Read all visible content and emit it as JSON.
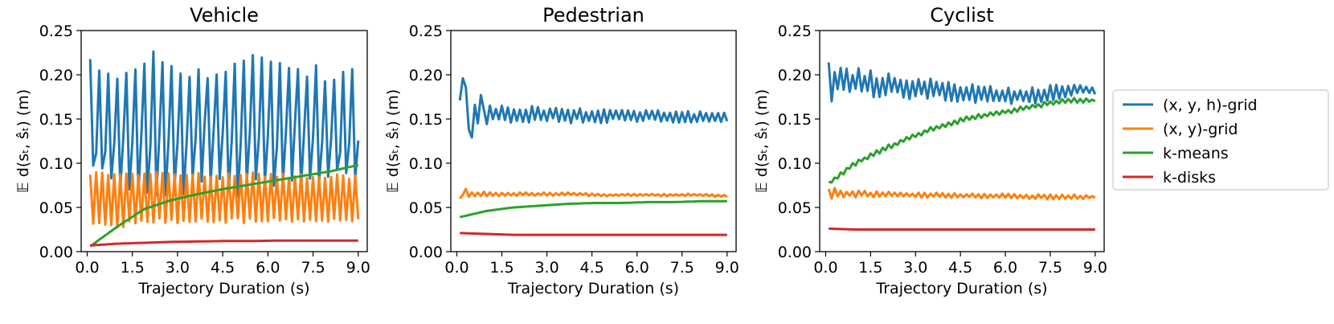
{
  "figure": {
    "legend": {
      "placement": "right",
      "entries": [
        {
          "key": "xyh",
          "label": "(x, y, h)-grid",
          "color": "#1f77b4"
        },
        {
          "key": "xy",
          "label": "(x, y)-grid",
          "color": "#ff7f0e"
        },
        {
          "key": "kmeans",
          "label": "k-means",
          "color": "#2ca02c"
        },
        {
          "key": "kdisks",
          "label": "k-disks",
          "color": "#d62728"
        }
      ]
    }
  },
  "chart_data": [
    {
      "type": "line",
      "title": "Vehicle",
      "xlabel": "Trajectory Duration (s)",
      "ylabel": "𝔼 d(sₜ, ŝₜ) (m)",
      "xlim": [
        -0.2,
        9.3
      ],
      "ylim": [
        0,
        0.25
      ],
      "xticks": [
        "0.0",
        "1.5",
        "3.0",
        "4.5",
        "6.0",
        "7.5",
        "9.0"
      ],
      "yticks": [
        "0.00",
        "0.05",
        "0.10",
        "0.15",
        "0.20",
        "0.25"
      ],
      "x": {
        "start": 0.1,
        "step": 0.1,
        "count": 90
      },
      "series": [
        {
          "name": "(x, y, h)-grid",
          "color": "#1f77b4",
          "pattern": "zigzag",
          "period": 3,
          "lo": [
            0.12,
            0.12,
            0.13,
            0.12,
            0.14,
            0.13,
            0.12,
            0.14,
            0.12,
            0.12
          ],
          "hi": [
            0.21,
            0.2,
            0.22,
            0.21,
            0.2,
            0.21,
            0.22,
            0.21,
            0.2,
            0.2
          ],
          "mid": [
            0.09,
            0.08,
            0.07,
            0.07,
            0.08,
            0.07,
            0.08,
            0.07,
            0.08,
            0.09
          ]
        },
        {
          "name": "(x, y)-grid",
          "color": "#ff7f0e",
          "pattern": "alternating",
          "lo": [
            0.03,
            0.03,
            0.035,
            0.035,
            0.035,
            0.035,
            0.035,
            0.035,
            0.035,
            0.035
          ],
          "hi": [
            0.089,
            0.089,
            0.088,
            0.087,
            0.087,
            0.087,
            0.086,
            0.086,
            0.085,
            0.084
          ]
        },
        {
          "name": "k-means",
          "color": "#2ca02c",
          "curve": [
            0.006,
            0.028,
            0.048,
            0.058,
            0.065,
            0.071,
            0.076,
            0.081,
            0.086,
            0.091,
            0.098
          ]
        },
        {
          "name": "k-disks",
          "color": "#d62728",
          "curve": [
            0.007,
            0.009,
            0.01,
            0.011,
            0.0115,
            0.012,
            0.012,
            0.0125,
            0.0125,
            0.0125,
            0.0125
          ]
        }
      ]
    },
    {
      "type": "line",
      "title": "Pedestrian",
      "xlabel": "Trajectory Duration (s)",
      "ylabel": "𝔼 d(sₜ, ŝₜ) (m)",
      "xlim": [
        -0.2,
        9.3
      ],
      "ylim": [
        0,
        0.25
      ],
      "xticks": [
        "0.0",
        "1.5",
        "3.0",
        "4.5",
        "6.0",
        "7.5",
        "9.0"
      ],
      "yticks": [
        "0.00",
        "0.05",
        "0.10",
        "0.15",
        "0.20",
        "0.25"
      ],
      "x": {
        "start": 0.1,
        "step": 0.1,
        "count": 90
      },
      "series": [
        {
          "name": "(x, y, h)-grid",
          "color": "#1f77b4",
          "pattern": "noisy",
          "start": [
            0.171,
            0.196,
            0.186,
            0.138,
            0.129,
            0.166,
            0.145,
            0.177
          ],
          "curve": [
            0.155,
            0.155,
            0.155,
            0.155,
            0.154,
            0.154,
            0.154,
            0.153,
            0.152,
            0.151
          ],
          "amp": [
            0.012,
            0.012,
            0.011,
            0.01,
            0.009,
            0.009,
            0.008,
            0.008,
            0.007,
            0.006
          ]
        },
        {
          "name": "(x, y)-grid",
          "color": "#ff7f0e",
          "pattern": "noisy",
          "start": [
            0.06,
            0.064,
            0.071,
            0.062
          ],
          "curve": [
            0.065,
            0.065,
            0.065,
            0.065,
            0.065,
            0.064,
            0.064,
            0.064,
            0.064,
            0.063
          ],
          "amp": [
            0.003,
            0.003,
            0.002,
            0.002,
            0.002,
            0.0015,
            0.0015,
            0.0015,
            0.0015,
            0.0015
          ]
        },
        {
          "name": "k-means",
          "color": "#2ca02c",
          "curve": [
            0.039,
            0.046,
            0.05,
            0.052,
            0.054,
            0.055,
            0.055,
            0.056,
            0.056,
            0.057,
            0.057
          ]
        },
        {
          "name": "k-disks",
          "color": "#d62728",
          "curve": [
            0.021,
            0.02,
            0.019,
            0.019,
            0.019,
            0.019,
            0.019,
            0.019,
            0.019,
            0.019,
            0.019
          ]
        }
      ]
    },
    {
      "type": "line",
      "title": "Cyclist",
      "xlabel": "Trajectory Duration (s)",
      "ylabel": "𝔼 d(sₜ, ŝₜ) (m)",
      "xlim": [
        -0.2,
        9.3
      ],
      "ylim": [
        0,
        0.25
      ],
      "xticks": [
        "0.0",
        "1.5",
        "3.0",
        "4.5",
        "6.0",
        "7.5",
        "9.0"
      ],
      "yticks": [
        "0.00",
        "0.05",
        "0.10",
        "0.15",
        "0.20",
        "0.25"
      ],
      "x": {
        "start": 0.1,
        "step": 0.1,
        "count": 90
      },
      "series": [
        {
          "name": "(x, y, h)-grid",
          "color": "#1f77b4",
          "pattern": "noisy",
          "start": [
            0.214,
            0.17,
            0.203
          ],
          "curve": [
            0.195,
            0.192,
            0.188,
            0.185,
            0.181,
            0.178,
            0.176,
            0.176,
            0.183,
            0.183
          ],
          "amp": [
            0.017,
            0.016,
            0.015,
            0.014,
            0.012,
            0.011,
            0.01,
            0.01,
            0.01,
            0.006
          ]
        },
        {
          "name": "(x, y)-grid",
          "color": "#ff7f0e",
          "pattern": "noisy",
          "start": [
            0.071,
            0.06,
            0.072
          ],
          "curve": [
            0.066,
            0.065,
            0.065,
            0.064,
            0.064,
            0.063,
            0.063,
            0.062,
            0.062,
            0.062
          ],
          "amp": [
            0.004,
            0.004,
            0.003,
            0.003,
            0.003,
            0.003,
            0.003,
            0.003,
            0.003,
            0.002
          ]
        },
        {
          "name": "k-means",
          "color": "#2ca02c",
          "pattern": "noisy",
          "curve": [
            0.077,
            0.1,
            0.115,
            0.128,
            0.14,
            0.149,
            0.155,
            0.16,
            0.166,
            0.171,
            0.171
          ],
          "amp": [
            0.002,
            0.003,
            0.003,
            0.003,
            0.003,
            0.003,
            0.003,
            0.003,
            0.003,
            0.003,
            0.002
          ]
        },
        {
          "name": "k-disks",
          "color": "#d62728",
          "curve": [
            0.026,
            0.025,
            0.025,
            0.025,
            0.025,
            0.025,
            0.025,
            0.025,
            0.025,
            0.025,
            0.025
          ]
        }
      ]
    }
  ]
}
